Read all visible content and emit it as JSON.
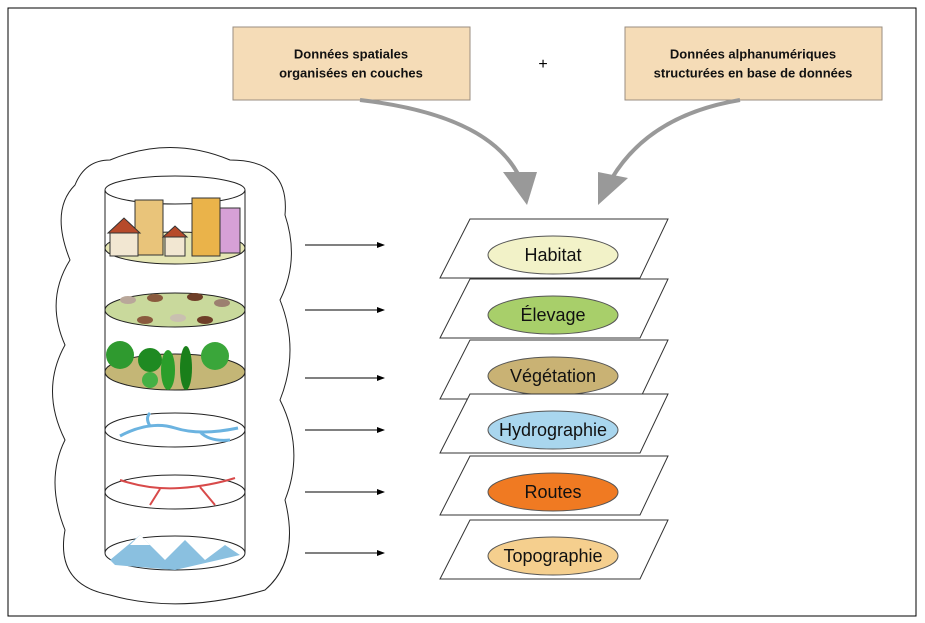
{
  "boxes": [
    {
      "lines": [
        "Données spatiales",
        "organisées en couches"
      ]
    },
    {
      "lines": [
        "Données alphanumériques",
        "structurées en base de données"
      ]
    }
  ],
  "operator": "+",
  "layers": [
    {
      "label": "Habitat"
    },
    {
      "label": "Élevage"
    },
    {
      "label": "Végétation"
    },
    {
      "label": "Hydrographie"
    },
    {
      "label": "Routes"
    },
    {
      "label": "Topographie"
    }
  ]
}
